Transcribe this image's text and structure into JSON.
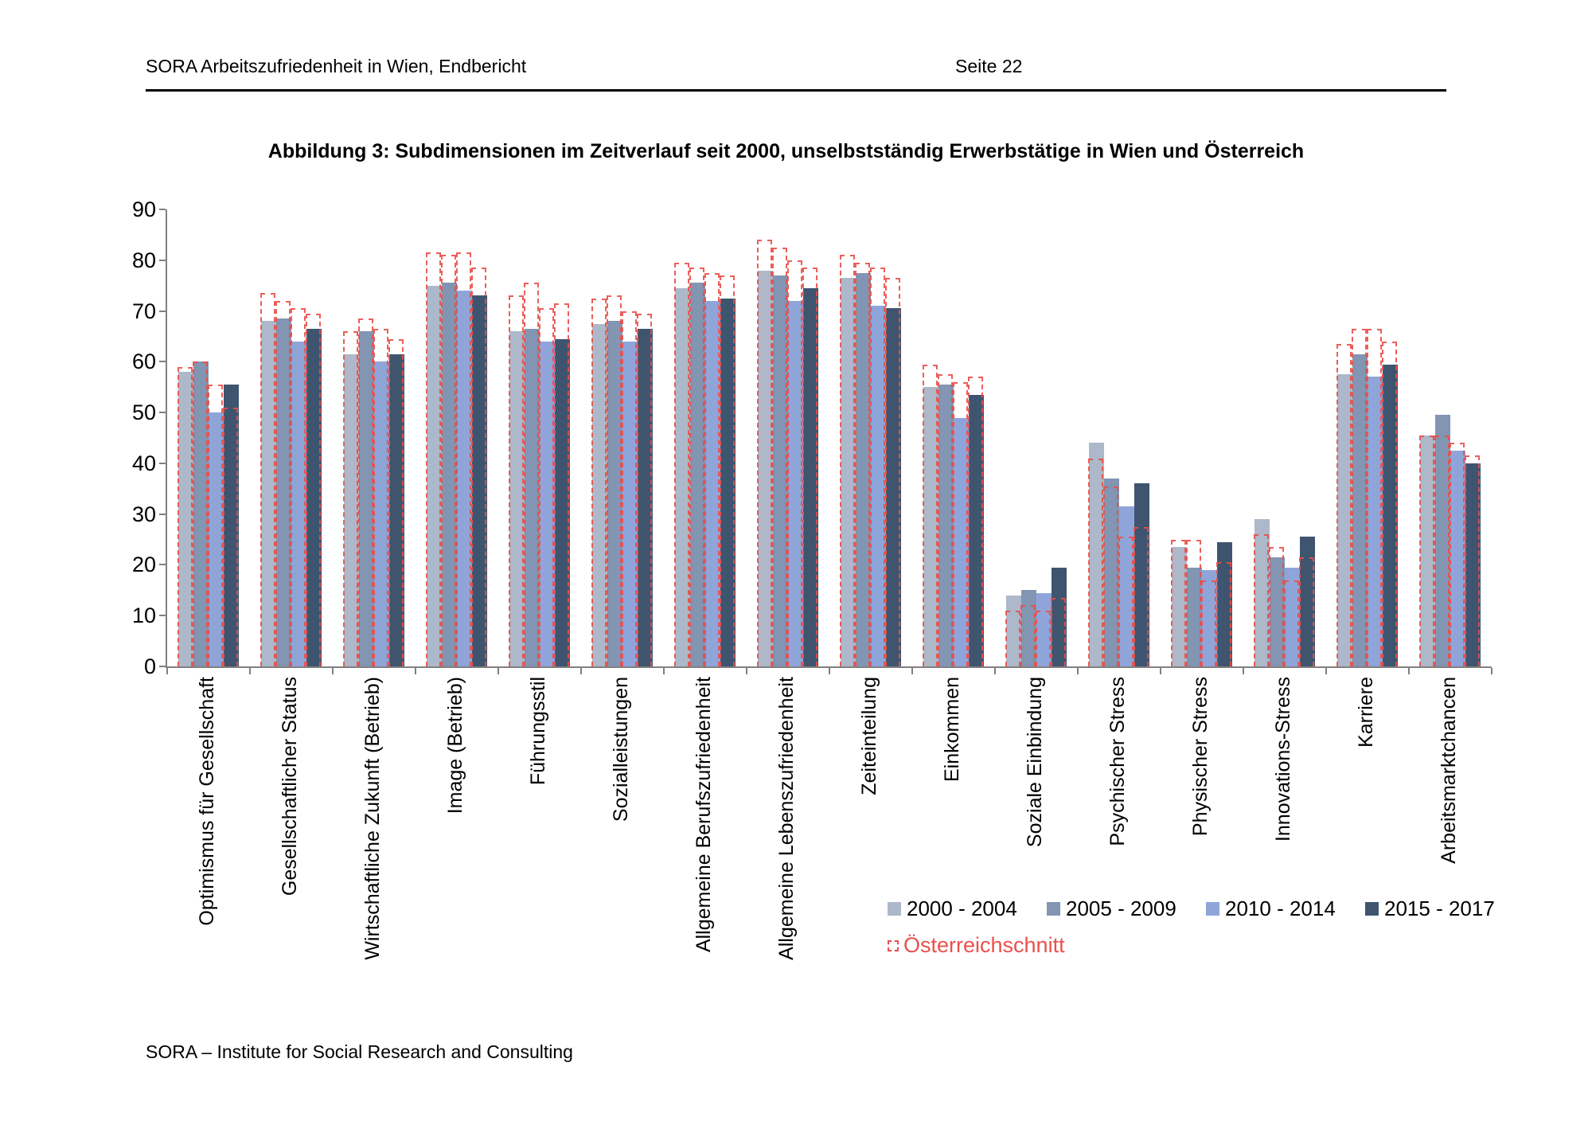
{
  "header": {
    "left": "SORA Arbeitszufriedenheit in Wien, Endbericht",
    "page": "Seite 22"
  },
  "title": "Abbildung 3: Subdimensionen im Zeitverlauf seit 2000, unselbstständig Erwerbstätige in Wien und Österreich",
  "footer": "SORA – Institute for Social Research and Consulting",
  "chart_data": {
    "type": "bar",
    "title": "Abbildung 3: Subdimensionen im Zeitverlauf seit 2000, unselbstständig Erwerbstätige in Wien und Österreich",
    "xlabel": "",
    "ylabel": "",
    "ylim": [
      0,
      90
    ],
    "yticks": [
      0,
      10,
      20,
      30,
      40,
      50,
      60,
      70,
      80,
      90
    ],
    "grid": false,
    "legend_position": "bottom-right",
    "categories": [
      "Optimismus für Gesellschaft",
      "Gesellschaftlicher Status",
      "Wirtschaftliche Zukunft (Betrieb)",
      "Image (Betrieb)",
      "Führungsstil",
      "Sozialleistungen",
      "Allgemeine Berufszufriedenheit",
      "Allgemeine Lebenszufriedenheit",
      "Zeiteinteilung",
      "Einkommen",
      "Soziale Einbindung",
      "Psychischer Stress",
      "Physischer Stress",
      "Innovations-Stress",
      "Karriere",
      "Arbeitsmarktchancen"
    ],
    "series": [
      {
        "name": "2000 - 2004",
        "color": "#adb8ca",
        "values": [
          58,
          68,
          61.5,
          75,
          66,
          67.5,
          74.5,
          78,
          76.5,
          55,
          14,
          44,
          23.5,
          29,
          57.5,
          45.5
        ]
      },
      {
        "name": "2005 - 2009",
        "color": "#8295b2",
        "values": [
          60,
          68.5,
          66,
          75.5,
          66.5,
          68,
          75.5,
          77,
          77.5,
          55.5,
          15,
          37,
          19.5,
          21.5,
          61.5,
          49.5
        ]
      },
      {
        "name": "2010 - 2014",
        "color": "#8fa5da",
        "values": [
          50,
          64,
          60,
          74,
          64,
          64,
          72,
          72,
          71,
          49,
          14.5,
          31.5,
          19,
          19.5,
          57,
          42.5
        ]
      },
      {
        "name": "2015 - 2017",
        "color": "#3f556f",
        "values": [
          55.5,
          66.5,
          61.5,
          73,
          64.5,
          66.5,
          72.5,
          74.5,
          70.5,
          53.5,
          19.5,
          36,
          24.5,
          25.5,
          59.5,
          40
        ]
      }
    ],
    "austria": {
      "name": "Österreichschnitt",
      "color": "#e9514d",
      "style": "dashed-outline",
      "values": [
        [
          59,
          60,
          55.5,
          51
        ],
        [
          73.5,
          72,
          70.5,
          69.5
        ],
        [
          66,
          68.5,
          66.5,
          64.5
        ],
        [
          81.5,
          81,
          81.5,
          78.5
        ],
        [
          73,
          75.5,
          70.5,
          71.5
        ],
        [
          72.5,
          73,
          70,
          69.5
        ],
        [
          79.5,
          78.5,
          77.5,
          77
        ],
        [
          84,
          82.5,
          80,
          78.5
        ],
        [
          81,
          79.5,
          78.5,
          76.5
        ],
        [
          59.5,
          57.5,
          56,
          57
        ],
        [
          11,
          12,
          11,
          13.5
        ],
        [
          41,
          35.5,
          25.5,
          27.5
        ],
        [
          25,
          25,
          17,
          20.5
        ],
        [
          26,
          23.5,
          17,
          21.5
        ],
        [
          63.5,
          66.5,
          66.5,
          64
        ],
        [
          45.5,
          45.5,
          44,
          41.5
        ]
      ]
    }
  }
}
